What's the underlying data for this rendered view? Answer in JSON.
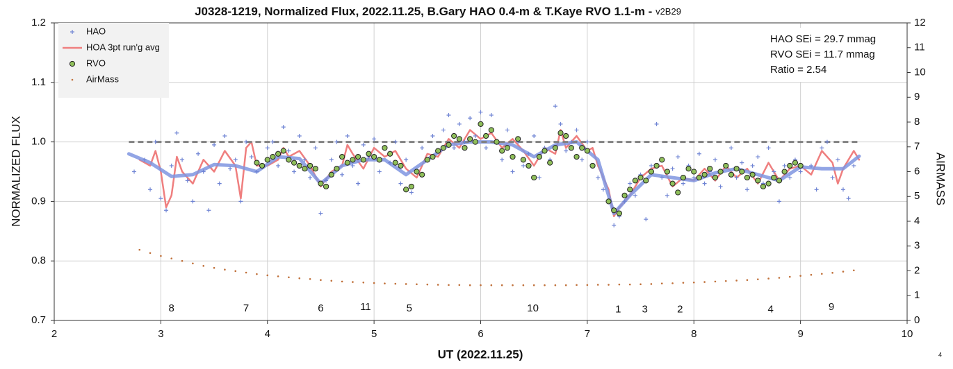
{
  "chart_data": {
    "type": "scatter",
    "title": "J0328-1219, Normalized Flux, 2022.11.25, B.Gary HAO 0.4-m & T.Kaye RVO 1.1-m - ",
    "subtitle": "v2B29",
    "x_label": "UT (2022.11.25)",
    "y_label": "NORMALIZED FLUX",
    "y2_label": "AIRMASS",
    "corner_note": "4",
    "stats": [
      "HAO SEi = 29.7 mmag",
      "RVO SEi = 11.7 mmag",
      "Ratio = 2.54"
    ],
    "xlim": [
      2,
      10
    ],
    "xticks": [
      2,
      3,
      4,
      5,
      6,
      7,
      8,
      9,
      10
    ],
    "ylim": [
      0.7,
      1.2
    ],
    "yticks": [
      0.7,
      0.8,
      0.9,
      {
        "value": 1,
        "label": "1.0"
      },
      1.1,
      1.2
    ],
    "y2lim": [
      0,
      12
    ],
    "y2ticks": [
      0,
      1,
      2,
      3,
      4,
      5,
      6,
      7,
      8,
      9,
      10,
      11,
      12
    ],
    "grid": true,
    "legend": "upper left",
    "annotations": [
      {
        "text": "8",
        "x": 3.1,
        "y": 0.72
      },
      {
        "text": "7",
        "x": 3.8,
        "y": 0.72
      },
      {
        "text": "6",
        "x": 4.5,
        "y": 0.72
      },
      {
        "text": "11",
        "x": 4.92,
        "y": 0.722
      },
      {
        "text": "5",
        "x": 5.33,
        "y": 0.72
      },
      {
        "text": "10",
        "x": 6.49,
        "y": 0.72
      },
      {
        "text": "1",
        "x": 7.29,
        "y": 0.718
      },
      {
        "text": "3",
        "x": 7.54,
        "y": 0.718
      },
      {
        "text": "2",
        "x": 7.87,
        "y": 0.718
      },
      {
        "text": "4",
        "x": 8.72,
        "y": 0.718
      },
      {
        "text": "9",
        "x": 9.29,
        "y": 0.722
      }
    ],
    "series": [
      {
        "name": "HAO",
        "mark": "plus",
        "color": "#6f84d4",
        "x": [
          2.75,
          2.85,
          2.9,
          2.95,
          3.0,
          3.05,
          3.1,
          3.15,
          3.2,
          3.25,
          3.3,
          3.35,
          3.4,
          3.45,
          3.5,
          3.55,
          3.6,
          3.65,
          3.7,
          3.75,
          3.8,
          3.85,
          3.9,
          3.95,
          4.0,
          4.05,
          4.1,
          4.15,
          4.2,
          4.25,
          4.3,
          4.35,
          4.4,
          4.45,
          4.5,
          4.55,
          4.6,
          4.65,
          4.7,
          4.75,
          4.8,
          4.85,
          4.9,
          4.95,
          5.0,
          5.05,
          5.1,
          5.15,
          5.2,
          5.25,
          5.3,
          5.35,
          5.4,
          5.45,
          5.5,
          5.55,
          5.6,
          5.65,
          5.7,
          5.75,
          5.8,
          5.85,
          5.9,
          5.95,
          6.0,
          6.05,
          6.1,
          6.15,
          6.2,
          6.25,
          6.3,
          6.35,
          6.4,
          6.45,
          6.5,
          6.55,
          6.6,
          6.65,
          6.7,
          6.75,
          6.8,
          6.85,
          6.9,
          6.95,
          7.0,
          7.05,
          7.1,
          7.15,
          7.2,
          7.25,
          7.3,
          7.35,
          7.4,
          7.45,
          7.5,
          7.55,
          7.6,
          7.65,
          7.7,
          7.75,
          7.8,
          7.85,
          7.9,
          7.95,
          8.0,
          8.05,
          8.1,
          8.15,
          8.2,
          8.25,
          8.3,
          8.35,
          8.4,
          8.45,
          8.5,
          8.55,
          8.6,
          8.65,
          8.7,
          8.75,
          8.8,
          8.85,
          8.9,
          8.95,
          9.0,
          9.1,
          9.15,
          9.2,
          9.25,
          9.3,
          9.35,
          9.4,
          9.45,
          9.5
        ],
        "values": [
          0.95,
          0.97,
          0.92,
          1.0,
          0.905,
          0.885,
          0.96,
          1.015,
          0.97,
          0.935,
          0.9,
          0.98,
          0.95,
          0.885,
          0.995,
          0.93,
          1.01,
          0.955,
          0.97,
          0.9,
          1.0,
          0.975,
          0.95,
          0.96,
          0.99,
          1.0,
          0.96,
          1.025,
          0.985,
          0.95,
          1.01,
          0.97,
          0.94,
          0.99,
          0.88,
          0.935,
          0.97,
          1.0,
          0.945,
          1.01,
          0.96,
          0.93,
          0.995,
          0.975,
          1.005,
          0.95,
          0.99,
          0.965,
          1.0,
          0.93,
          0.97,
          0.915,
          0.95,
          0.99,
          0.97,
          1.01,
          0.985,
          1.02,
          1.045,
          0.99,
          1.03,
          1.0,
          1.04,
          1.01,
          1.05,
          0.99,
          1.045,
          1.0,
          0.97,
          1.02,
          0.95,
          1.0,
          0.96,
          0.98,
          1.01,
          0.94,
          0.99,
          0.97,
          1.06,
          1.03,
          0.985,
          1.0,
          1.02,
          0.97,
          1.0,
          0.96,
          0.94,
          0.92,
          0.9,
          0.86,
          0.875,
          0.9,
          0.93,
          0.91,
          0.945,
          0.87,
          0.96,
          1.03,
          0.94,
          0.91,
          0.955,
          0.975,
          0.93,
          0.96,
          0.94,
          0.98,
          0.93,
          0.95,
          0.97,
          0.925,
          0.96,
          0.99,
          0.94,
          0.965,
          0.92,
          0.96,
          0.975,
          0.93,
          0.99,
          0.95,
          0.9,
          0.96,
          0.94,
          0.97,
          0.95,
          0.96,
          0.92,
          0.99,
          1.0,
          0.94,
          0.97,
          0.92,
          0.905,
          0.96
        ]
      },
      {
        "name": "HOA 3pt run'g avg",
        "mark": "line",
        "color": "#ef7f7f",
        "width": 2.5,
        "x": [
          2.8,
          2.9,
          2.95,
          3.0,
          3.05,
          3.1,
          3.15,
          3.2,
          3.3,
          3.4,
          3.5,
          3.6,
          3.7,
          3.75,
          3.8,
          3.85,
          3.9,
          4.0,
          4.1,
          4.15,
          4.2,
          4.3,
          4.4,
          4.5,
          4.6,
          4.7,
          4.75,
          4.8,
          4.9,
          5.0,
          5.1,
          5.2,
          5.3,
          5.4,
          5.5,
          5.6,
          5.7,
          5.8,
          5.9,
          6.0,
          6.1,
          6.2,
          6.3,
          6.4,
          6.5,
          6.6,
          6.7,
          6.75,
          6.8,
          6.9,
          7.0,
          7.05,
          7.1,
          7.2,
          7.25,
          7.3,
          7.4,
          7.5,
          7.6,
          7.7,
          7.8,
          7.9,
          8.0,
          8.1,
          8.2,
          8.3,
          8.4,
          8.5,
          8.6,
          8.7,
          8.8,
          8.9,
          9.0,
          9.1,
          9.2,
          9.3,
          9.35,
          9.4,
          9.5,
          9.55
        ],
        "values": [
          0.97,
          0.96,
          0.985,
          0.95,
          0.89,
          0.91,
          0.975,
          0.95,
          0.93,
          0.97,
          0.95,
          0.985,
          0.96,
          0.905,
          0.99,
          1.0,
          0.96,
          0.96,
          0.97,
          0.99,
          0.975,
          0.985,
          0.96,
          0.925,
          0.95,
          0.96,
          0.995,
          0.98,
          0.955,
          0.99,
          0.975,
          0.985,
          0.955,
          0.94,
          0.98,
          0.975,
          1.005,
          0.99,
          1.02,
          1.005,
          1.015,
          0.99,
          1.005,
          0.985,
          0.96,
          0.99,
          0.98,
          1.02,
          0.99,
          1.01,
          0.985,
          0.99,
          0.96,
          0.92,
          0.875,
          0.89,
          0.91,
          0.94,
          0.955,
          0.96,
          0.925,
          0.94,
          0.935,
          0.955,
          0.935,
          0.96,
          0.94,
          0.955,
          0.93,
          0.965,
          0.935,
          0.955,
          0.96,
          0.945,
          0.985,
          0.965,
          0.93,
          0.955,
          0.985,
          0.97
        ]
      },
      {
        "name": "RVO",
        "mark": "circle",
        "color": "#8fbf5a",
        "x": [
          3.9,
          3.95,
          4.0,
          4.05,
          4.1,
          4.15,
          4.2,
          4.25,
          4.3,
          4.35,
          4.4,
          4.45,
          4.5,
          4.55,
          4.6,
          4.65,
          4.7,
          4.75,
          4.8,
          4.85,
          4.9,
          4.95,
          5.0,
          5.05,
          5.1,
          5.15,
          5.2,
          5.25,
          5.3,
          5.35,
          5.4,
          5.45,
          5.5,
          5.55,
          5.6,
          5.65,
          5.7,
          5.75,
          5.8,
          5.85,
          5.9,
          5.95,
          6.0,
          6.05,
          6.1,
          6.15,
          6.2,
          6.25,
          6.3,
          6.35,
          6.4,
          6.45,
          6.5,
          6.55,
          6.6,
          6.65,
          6.7,
          6.75,
          6.8,
          6.85,
          6.9,
          6.95,
          7.0,
          7.05,
          7.2,
          7.25,
          7.3,
          7.35,
          7.4,
          7.45,
          7.5,
          7.55,
          7.6,
          7.65,
          7.7,
          7.75,
          7.8,
          7.85,
          7.9,
          7.95,
          8.0,
          8.05,
          8.1,
          8.15,
          8.2,
          8.25,
          8.3,
          8.35,
          8.4,
          8.45,
          8.5,
          8.55,
          8.6,
          8.65,
          8.7,
          8.75,
          8.8,
          8.85,
          8.9,
          8.95,
          9.0
        ],
        "values": [
          0.965,
          0.96,
          0.97,
          0.975,
          0.98,
          0.985,
          0.97,
          0.965,
          0.96,
          0.955,
          0.96,
          0.955,
          0.93,
          0.925,
          0.945,
          0.955,
          0.975,
          0.965,
          0.97,
          0.975,
          0.97,
          0.98,
          0.975,
          0.97,
          0.99,
          0.98,
          0.965,
          0.96,
          0.92,
          0.925,
          0.95,
          0.945,
          0.97,
          0.975,
          0.985,
          0.99,
          0.995,
          1.01,
          1.005,
          0.99,
          1.005,
          1.0,
          1.03,
          1.01,
          1.02,
          1.0,
          0.985,
          0.99,
          0.975,
          1.005,
          0.97,
          0.96,
          0.94,
          0.975,
          0.985,
          0.965,
          0.99,
          1.015,
          1.01,
          0.99,
          0.975,
          0.99,
          0.985,
          0.96,
          0.9,
          0.885,
          0.88,
          0.91,
          0.92,
          0.935,
          0.94,
          0.935,
          0.95,
          0.96,
          0.97,
          0.95,
          0.93,
          0.915,
          0.94,
          0.955,
          0.95,
          0.94,
          0.945,
          0.955,
          0.94,
          0.95,
          0.96,
          0.945,
          0.955,
          0.95,
          0.94,
          0.945,
          0.935,
          0.925,
          0.93,
          0.94,
          0.935,
          0.95,
          0.96,
          0.965,
          0.96
        ]
      },
      {
        "name": "AirMass",
        "mark": "dot",
        "color": "#c0703a",
        "axis": "y2",
        "x": [
          2.8,
          2.9,
          3.0,
          3.1,
          3.2,
          3.3,
          3.4,
          3.5,
          3.6,
          3.7,
          3.8,
          3.9,
          4.0,
          4.1,
          4.2,
          4.3,
          4.4,
          4.5,
          4.6,
          4.7,
          4.8,
          4.9,
          5.0,
          5.1,
          5.2,
          5.3,
          5.4,
          5.5,
          5.6,
          5.7,
          5.8,
          5.9,
          6.0,
          6.1,
          6.2,
          6.3,
          6.4,
          6.5,
          6.6,
          6.7,
          6.8,
          6.9,
          7.0,
          7.1,
          7.2,
          7.3,
          7.4,
          7.5,
          7.6,
          7.7,
          7.8,
          7.9,
          8.0,
          8.1,
          8.2,
          8.3,
          8.4,
          8.5,
          8.6,
          8.7,
          8.8,
          8.9,
          9.0,
          9.1,
          9.2,
          9.3,
          9.4,
          9.5
        ],
        "values": [
          2.85,
          2.72,
          2.6,
          2.5,
          2.4,
          2.3,
          2.2,
          2.12,
          2.05,
          1.99,
          1.93,
          1.87,
          1.82,
          1.78,
          1.74,
          1.7,
          1.67,
          1.63,
          1.6,
          1.57,
          1.55,
          1.53,
          1.51,
          1.49,
          1.48,
          1.47,
          1.46,
          1.45,
          1.44,
          1.43,
          1.43,
          1.42,
          1.42,
          1.42,
          1.42,
          1.42,
          1.42,
          1.42,
          1.42,
          1.42,
          1.42,
          1.43,
          1.43,
          1.44,
          1.44,
          1.45,
          1.45,
          1.46,
          1.47,
          1.49,
          1.5,
          1.52,
          1.53,
          1.55,
          1.57,
          1.59,
          1.61,
          1.63,
          1.66,
          1.69,
          1.72,
          1.76,
          1.8,
          1.84,
          1.88,
          1.92,
          1.97,
          2.02
        ]
      },
      {
        "mark": "line",
        "color": "#7f95e0",
        "width": 5,
        "x": [
          2.7,
          2.9,
          3.1,
          3.3,
          3.5,
          3.7,
          3.9,
          4.1,
          4.3,
          4.5,
          4.7,
          4.9,
          5.1,
          5.3,
          5.5,
          5.7,
          5.9,
          6.1,
          6.3,
          6.5,
          6.7,
          6.9,
          7.1,
          7.25,
          7.4,
          7.6,
          7.8,
          8.0,
          8.2,
          8.4,
          8.6,
          8.8,
          9.0,
          9.2,
          9.4,
          9.55
        ],
        "values": [
          0.98,
          0.965,
          0.942,
          0.945,
          0.962,
          0.96,
          0.95,
          0.975,
          0.972,
          0.93,
          0.96,
          0.97,
          0.97,
          0.945,
          0.97,
          0.995,
          1.0,
          1.0,
          0.995,
          0.975,
          0.995,
          1.0,
          0.97,
          0.88,
          0.91,
          0.945,
          0.94,
          0.935,
          0.948,
          0.955,
          0.945,
          0.935,
          0.958,
          0.955,
          0.955,
          0.976
        ]
      },
      {
        "mark": "dash",
        "color": "#808080",
        "width": 3,
        "x": [
          2.7,
          9.55
        ],
        "values": [
          1,
          1
        ]
      }
    ]
  }
}
